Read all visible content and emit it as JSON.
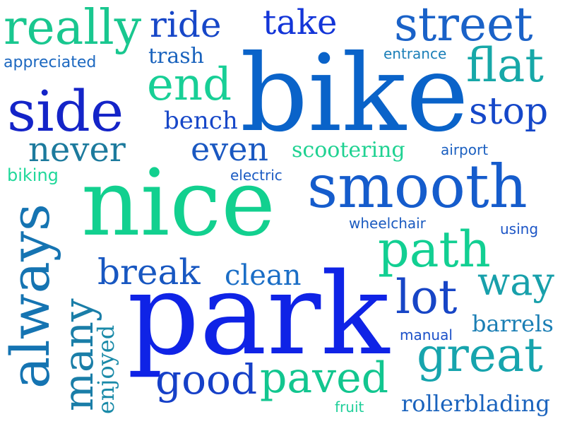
{
  "words": [
    {
      "text": "bike",
      "color": "#0a63c9"
    },
    {
      "text": "park",
      "color": "#0f23e6"
    },
    {
      "text": "nice",
      "color": "#12d08f"
    },
    {
      "text": "smooth",
      "color": "#155ccc"
    },
    {
      "text": "always",
      "color": "#1574b2"
    },
    {
      "text": "side",
      "color": "#1424c8"
    },
    {
      "text": "street",
      "color": "#1a62c8"
    },
    {
      "text": "really",
      "color": "#19c78f"
    },
    {
      "text": "great",
      "color": "#16a4ad"
    },
    {
      "text": "path",
      "color": "#12cf92"
    },
    {
      "text": "paved",
      "color": "#12c68f"
    },
    {
      "text": "many",
      "color": "#1a7ea8"
    },
    {
      "text": "good",
      "color": "#1640c8"
    },
    {
      "text": "end",
      "color": "#18cf96"
    },
    {
      "text": "flat",
      "color": "#17a8a8"
    },
    {
      "text": "lot",
      "color": "#1745c6"
    },
    {
      "text": "stop",
      "color": "#1547c9"
    },
    {
      "text": "break",
      "color": "#1857c1"
    },
    {
      "text": "way",
      "color": "#18a0ab"
    },
    {
      "text": "ride",
      "color": "#1747c8"
    },
    {
      "text": "take",
      "color": "#1335d8"
    },
    {
      "text": "never",
      "color": "#1c7a9d"
    },
    {
      "text": "even",
      "color": "#1a58c1"
    },
    {
      "text": "clean",
      "color": "#1b6ec6"
    },
    {
      "text": "barrels",
      "color": "#1a7eb4"
    },
    {
      "text": "enjoyed",
      "color": "#1a8aa8"
    },
    {
      "text": "bench",
      "color": "#1747c8"
    },
    {
      "text": "rollerblading",
      "color": "#1a63bd"
    },
    {
      "text": "scootering",
      "color": "#20d292"
    },
    {
      "text": "trash",
      "color": "#1a63bd"
    },
    {
      "text": "appreciated",
      "color": "#1c68c0"
    },
    {
      "text": "entrance",
      "color": "#1b7fb8"
    },
    {
      "text": "airport",
      "color": "#1a5fc0"
    },
    {
      "text": "biking",
      "color": "#20d89a"
    },
    {
      "text": "electric",
      "color": "#1c5cc3"
    },
    {
      "text": "wheelchair",
      "color": "#1b5bc0"
    },
    {
      "text": "using",
      "color": "#1c55c6"
    },
    {
      "text": "manual",
      "color": "#1b50c8"
    },
    {
      "text": "fruit",
      "color": "#1fcf9a"
    }
  ]
}
